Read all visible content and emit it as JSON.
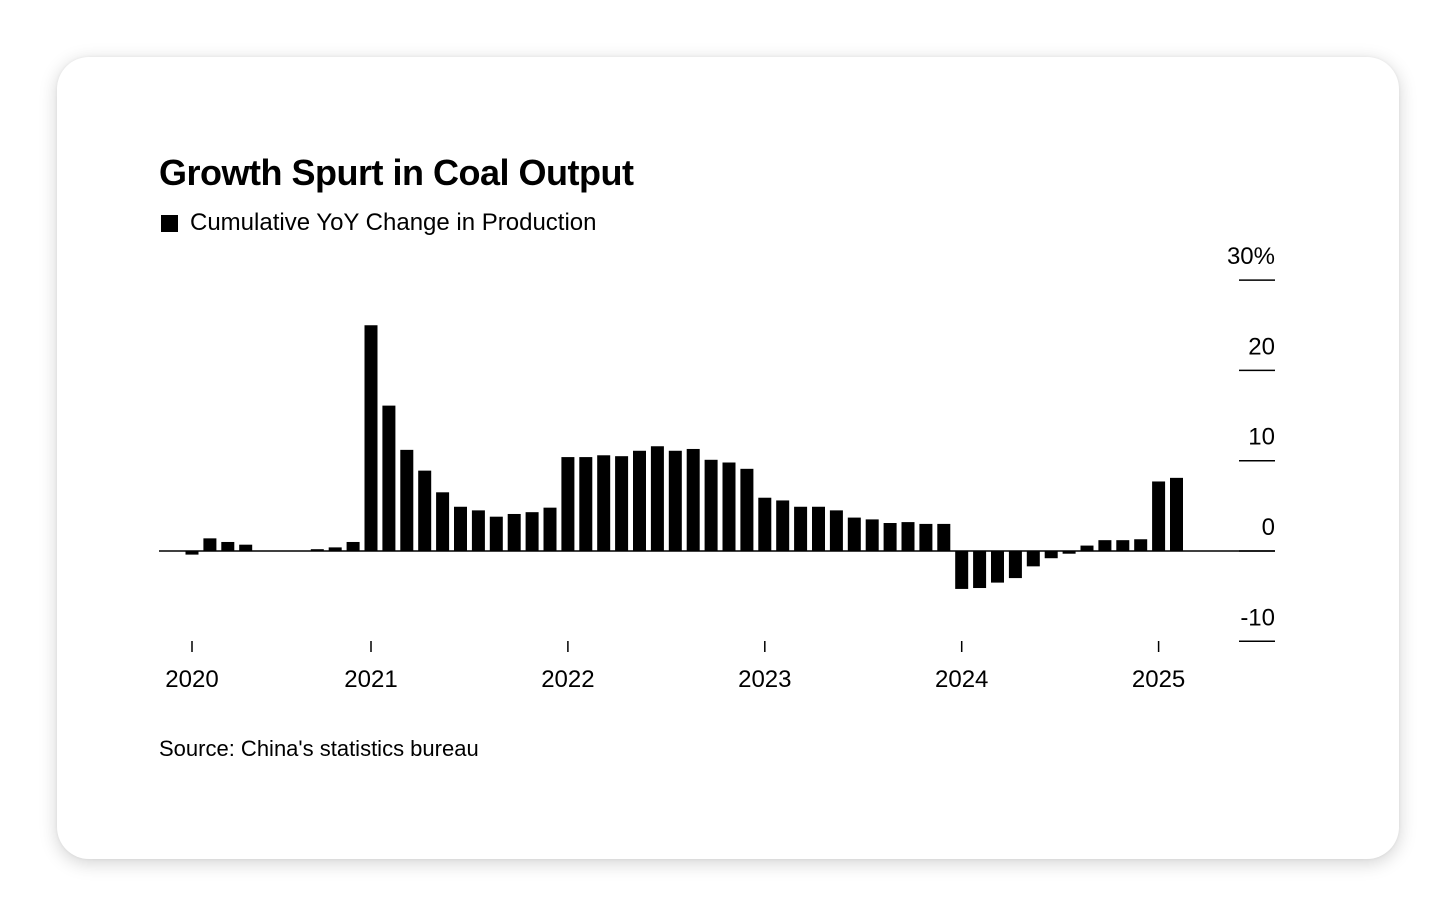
{
  "chart_data": {
    "type": "bar",
    "title": "Growth Spurt in Coal Output",
    "legend": [
      "Cumulative YoY Change in Production"
    ],
    "source": "Source: China's statistics bureau",
    "ylim": [
      -10,
      30
    ],
    "y_ticks": [
      {
        "v": 30,
        "label": "30%"
      },
      {
        "v": 20,
        "label": "20"
      },
      {
        "v": 10,
        "label": "10"
      },
      {
        "v": 0,
        "label": "0"
      },
      {
        "v": -10,
        "label": "-10"
      }
    ],
    "x_ticks": [
      {
        "i": 0,
        "label": "2020"
      },
      {
        "i": 10,
        "label": "2021"
      },
      {
        "i": 21,
        "label": "2022"
      },
      {
        "i": 32,
        "label": "2023"
      },
      {
        "i": 43,
        "label": "2024"
      },
      {
        "i": 54,
        "label": "2025"
      }
    ],
    "values": [
      -0.4,
      1.4,
      1.0,
      0.7,
      0,
      0,
      0,
      0.2,
      0.4,
      1.0,
      25.0,
      16.1,
      11.2,
      8.9,
      6.5,
      4.9,
      4.5,
      3.8,
      4.1,
      4.3,
      4.8,
      10.4,
      10.4,
      10.6,
      10.5,
      11.1,
      11.6,
      11.1,
      11.3,
      10.1,
      9.8,
      9.1,
      5.9,
      5.6,
      4.9,
      4.9,
      4.5,
      3.7,
      3.5,
      3.1,
      3.2,
      3.0,
      3.0,
      -4.2,
      -4.1,
      -3.5,
      -3.0,
      -1.7,
      -0.8,
      -0.3,
      0.6,
      1.2,
      1.2,
      1.3,
      7.7,
      8.1
    ],
    "legend_position": "top-left",
    "grid": false
  }
}
